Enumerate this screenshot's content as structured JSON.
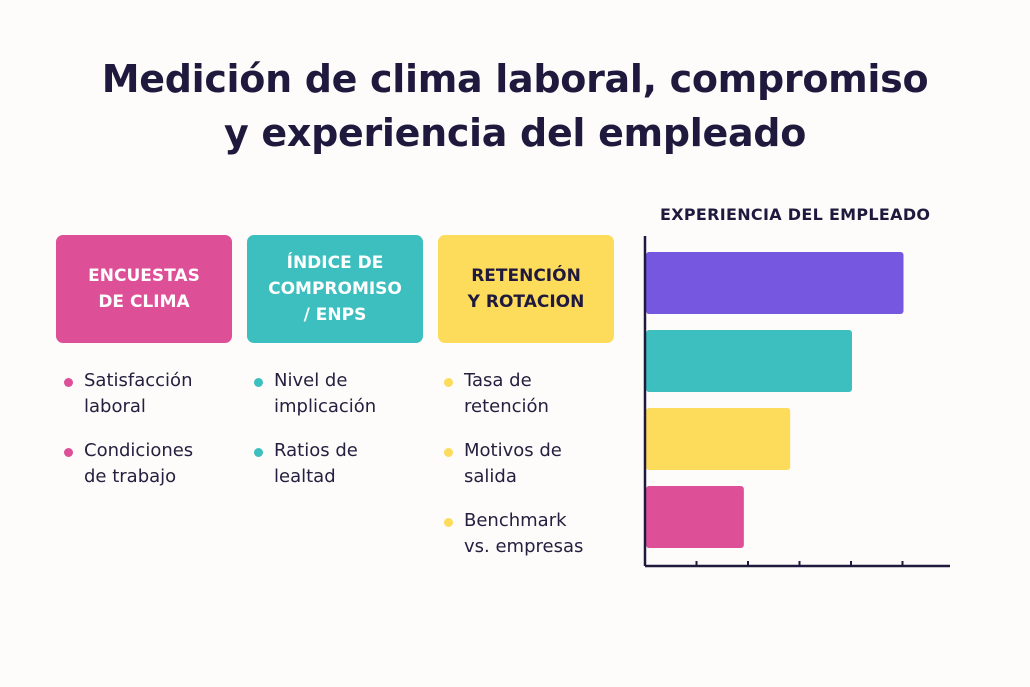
{
  "title": {
    "line1": "Medición de clima laboral, compromiso",
    "line2": "y experiencia del empleado"
  },
  "colors": {
    "pink": "#dd4f97",
    "teal": "#3cbfbe",
    "yellow": "#fddb5b",
    "purple": "#7557e0",
    "dark": "#1f1a3d"
  },
  "columns": [
    {
      "heading": "ENCUESTAS\nDE CLIMA",
      "color": "#dd4f97",
      "text_color": "#ffffff",
      "items": [
        "Satisfacción\nlaboral",
        "Condiciones\nde trabajo"
      ]
    },
    {
      "heading": "ÍNDICE DE\nCOMPROMISO\n/ ENPS",
      "color": "#3cbfbe",
      "text_color": "#ffffff",
      "items": [
        "Nivel de\nimplicación",
        "Ratios de\nlealtad"
      ]
    },
    {
      "heading": "RETENCIÓN\nY ROTACION",
      "color": "#fddb5b",
      "text_color": "#1f1a3d",
      "items": [
        "Tasa de\nretención",
        "Motivos de\nsalida",
        "Benchmark\nvs. empresas"
      ]
    }
  ],
  "chart_data": {
    "type": "bar",
    "orientation": "horizontal",
    "title": "EXPERIENCIA DEL EMPLEADO",
    "values": [
      5,
      4,
      2.8,
      1.9
    ],
    "colors": [
      "#7557e0",
      "#3cbfbe",
      "#fddb5b",
      "#dd4f97"
    ],
    "xlim": [
      0,
      6
    ],
    "tick_count": 6,
    "grid": false
  }
}
